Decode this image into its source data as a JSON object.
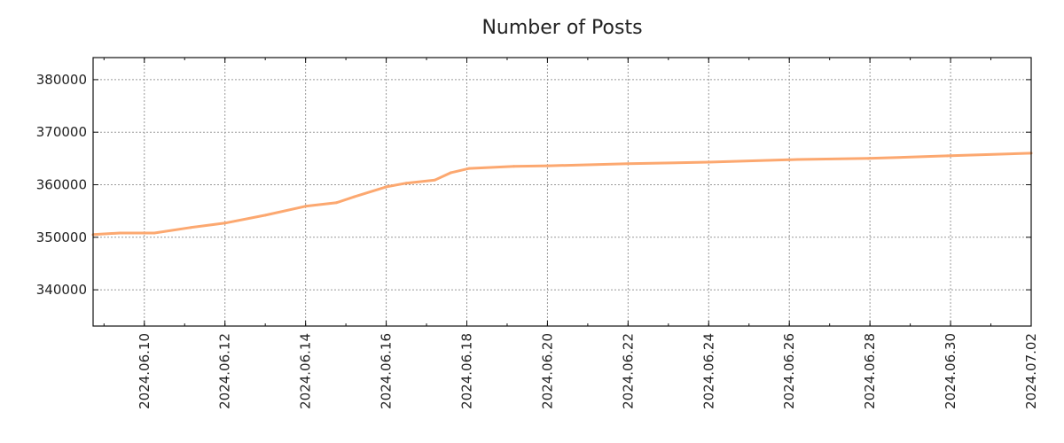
{
  "chart_data": {
    "type": "line",
    "title": "Number of Posts",
    "xlabel": "",
    "ylabel": "",
    "xlim": [
      "2024-06-08T17:30:00",
      "2024-07-02T00:00:00"
    ],
    "ylim": [
      333100,
      384200
    ],
    "grid": true,
    "line_color": "#fca870",
    "y_ticks": [
      340000,
      350000,
      360000,
      370000,
      380000
    ],
    "y_tick_labels": [
      "340000",
      "350000",
      "360000",
      "370000",
      "380000"
    ],
    "x_ticks": [
      "2024-06-10",
      "2024-06-12",
      "2024-06-14",
      "2024-06-16",
      "2024-06-18",
      "2024-06-20",
      "2024-06-22",
      "2024-06-24",
      "2024-06-26",
      "2024-06-28",
      "2024-06-30",
      "2024-07-02"
    ],
    "x_tick_labels": [
      "2024.06.10",
      "2024.06.12",
      "2024.06.14",
      "2024.06.16",
      "2024.06.18",
      "2024.06.20",
      "2024.06.22",
      "2024.06.24",
      "2024.06.26",
      "2024.06.28",
      "2024.06.30",
      "2024.07.02"
    ],
    "series": [
      {
        "name": "Number of Posts",
        "x": [
          "2024-06-08T17:30:00",
          "2024-06-09T09:30:00",
          "2024-06-10T06:00:00",
          "2024-06-11T03:30:00",
          "2024-06-12T00:00:00",
          "2024-06-13T00:00:00",
          "2024-06-14T00:00:00",
          "2024-06-14T18:30:00",
          "2024-06-15T05:00:00",
          "2024-06-16T00:00:00",
          "2024-06-16T12:00:00",
          "2024-06-17T05:00:00",
          "2024-06-17T14:30:00",
          "2024-06-18T01:30:00",
          "2024-06-19T04:00:00",
          "2024-06-20T01:00:00",
          "2024-06-22T00:00:00",
          "2024-06-24T00:00:00",
          "2024-06-26T05:00:00",
          "2024-06-27T23:00:00",
          "2024-06-29T22:00:00",
          "2024-07-02T00:00:00"
        ],
        "y": [
          350500,
          350800,
          350800,
          351850,
          352700,
          354200,
          355900,
          356600,
          357700,
          359600,
          360300,
          360900,
          362300,
          363100,
          363500,
          363600,
          364000,
          364300,
          364800,
          365000,
          365500,
          366000
        ]
      }
    ]
  }
}
